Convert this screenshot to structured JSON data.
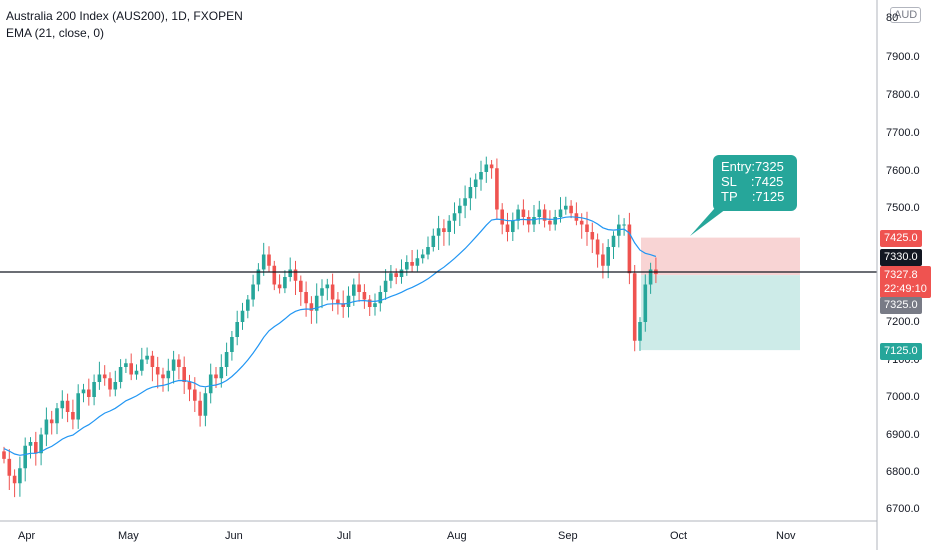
{
  "header": {
    "title": "Australia 200 Index (AUS200), 1D, FXOPEN",
    "indicator": "EMA (21, close, 0)"
  },
  "currency_badge": "AUD",
  "y_axis": {
    "labels": [
      "80",
      "7900.0",
      "7800.0",
      "7700.0",
      "7600.0",
      "7500.0",
      "7200.0",
      "7100.0",
      "7000.0",
      "6900.0",
      "6800.0",
      "6700.0"
    ]
  },
  "x_axis": {
    "labels": [
      "Apr",
      "May",
      "Jun",
      "Jul",
      "Aug",
      "Sep",
      "Oct",
      "Nov"
    ]
  },
  "price_tags": {
    "stop": "7425.0",
    "crosshair": "7330.0",
    "last": "7327.8",
    "countdown": "22:49:10",
    "entry": "7325.0",
    "target": "7125.0"
  },
  "callout": {
    "line1": "Entry:7325",
    "line2": "SL    :7425",
    "line3": "TP    :7125"
  },
  "colors": {
    "up": "#26a69a",
    "down": "#ef5350",
    "ema": "#2196f3",
    "stop_zone": "#f8d4d4",
    "target_zone": "#cdebe8"
  },
  "chart_data": {
    "type": "candlestick",
    "ylim": [
      6650,
      8050
    ],
    "ema_length": 21,
    "close": [
      6835,
      6790,
      6770,
      6810,
      6870,
      6880,
      6850,
      6900,
      6940,
      6930,
      6970,
      6990,
      6960,
      6940,
      7010,
      7020,
      7000,
      7040,
      7060,
      7050,
      7020,
      7040,
      7080,
      7090,
      7060,
      7070,
      7100,
      7110,
      7080,
      7060,
      7050,
      7070,
      7100,
      7080,
      7040,
      7020,
      6990,
      6950,
      7010,
      7060,
      7050,
      7080,
      7120,
      7160,
      7200,
      7230,
      7260,
      7300,
      7340,
      7380,
      7350,
      7300,
      7290,
      7320,
      7340,
      7310,
      7280,
      7250,
      7230,
      7270,
      7290,
      7300,
      7260,
      7250,
      7240,
      7270,
      7300,
      7280,
      7260,
      7240,
      7250,
      7280,
      7310,
      7330,
      7320,
      7340,
      7360,
      7350,
      7370,
      7380,
      7400,
      7430,
      7450,
      7440,
      7470,
      7490,
      7510,
      7530,
      7560,
      7580,
      7600,
      7620,
      7610,
      7500,
      7460,
      7440,
      7470,
      7500,
      7480,
      7460,
      7480,
      7500,
      7470,
      7460,
      7480,
      7500,
      7510,
      7490,
      7470,
      7460,
      7440,
      7420,
      7380,
      7350,
      7400,
      7430,
      7460,
      7460,
      7330,
      7150,
      7200,
      7300,
      7340,
      7327.8
    ]
  }
}
